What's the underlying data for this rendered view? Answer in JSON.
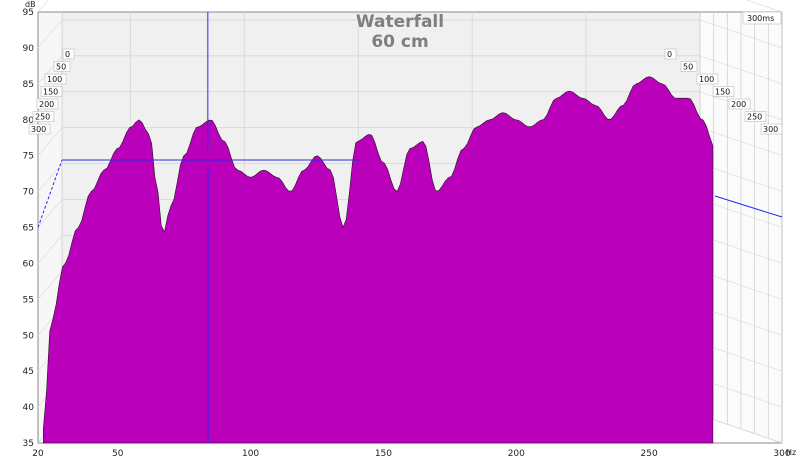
{
  "chart_data": {
    "type": "waterfall",
    "title": "Waterfall",
    "subtitle": "60 cm",
    "y_unit": "dB",
    "x_unit": "Hz",
    "time_unit": "ms",
    "time_axis_label": "300ms",
    "xlim": [
      20,
      300
    ],
    "ylim": [
      35,
      95
    ],
    "x_ticks": [
      20,
      50,
      100,
      150,
      200,
      250,
      300
    ],
    "y_ticks": [
      35,
      40,
      45,
      50,
      55,
      60,
      65,
      70,
      75,
      80,
      85,
      90,
      95
    ],
    "time_ticks": [
      "0",
      "50",
      "100",
      "150",
      "200",
      "250",
      "300"
    ],
    "time_range_ms": [
      0,
      300
    ],
    "grid": true,
    "fill_color": "#bb00bb",
    "line_color": "#111111",
    "cursor_color": "#2a2aee",
    "cursor": {
      "frequency_hz": 84,
      "level_db": 70.5
    },
    "slice0_response": {
      "hz": [
        22,
        25,
        30,
        35,
        40,
        45,
        50,
        55,
        58,
        62,
        65,
        67,
        70,
        75,
        80,
        85,
        90,
        95,
        100,
        105,
        110,
        115,
        120,
        125,
        130,
        135,
        140,
        145,
        150,
        155,
        160,
        165,
        170,
        175,
        180,
        185,
        190,
        195,
        200,
        205,
        210,
        215,
        220,
        225,
        230,
        235,
        240,
        245,
        250,
        255,
        260,
        265,
        270,
        275
      ],
      "db": [
        37,
        52,
        60,
        65,
        70,
        73,
        76,
        79,
        80,
        78,
        70,
        64,
        68,
        75,
        79,
        80,
        77,
        73,
        72,
        73,
        72,
        70,
        73,
        75,
        73,
        65,
        77,
        78,
        74,
        70,
        76,
        77,
        70,
        72,
        76,
        79,
        80,
        81,
        80,
        79,
        80,
        83,
        84,
        83,
        82,
        80,
        82,
        85,
        86,
        85,
        83,
        83,
        80,
        76
      ]
    }
  }
}
